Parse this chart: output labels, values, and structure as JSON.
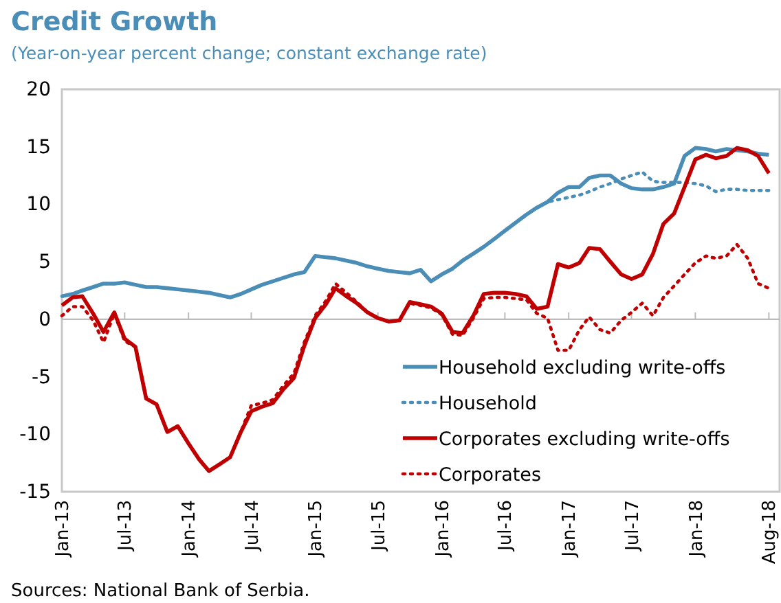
{
  "chart_data": {
    "type": "line",
    "title": "Credit Growth",
    "subtitle": "(Year-on-year percent change; constant exchange rate)",
    "x": [
      "2013-01",
      "2013-02",
      "2013-03",
      "2013-04",
      "2013-05",
      "2013-06",
      "2013-07",
      "2013-08",
      "2013-09",
      "2013-10",
      "2013-11",
      "2013-12",
      "2014-01",
      "2014-02",
      "2014-03",
      "2014-04",
      "2014-05",
      "2014-06",
      "2014-07",
      "2014-08",
      "2014-09",
      "2014-10",
      "2014-11",
      "2014-12",
      "2015-01",
      "2015-02",
      "2015-03",
      "2015-04",
      "2015-05",
      "2015-06",
      "2015-07",
      "2015-08",
      "2015-09",
      "2015-10",
      "2015-11",
      "2015-12",
      "2016-01",
      "2016-02",
      "2016-03",
      "2016-04",
      "2016-05",
      "2016-06",
      "2016-07",
      "2016-08",
      "2016-09",
      "2016-10",
      "2016-11",
      "2016-12",
      "2017-01",
      "2017-02",
      "2017-03",
      "2017-04",
      "2017-05",
      "2017-06",
      "2017-07",
      "2017-08",
      "2017-09",
      "2017-10",
      "2017-11",
      "2017-12",
      "2018-01",
      "2018-02",
      "2018-03",
      "2018-04",
      "2018-05",
      "2018-06",
      "2018-07",
      "2018-08"
    ],
    "series": [
      {
        "name": "Household excluding write-offs",
        "color": "#4a8db7",
        "line_style": "solid",
        "values": [
          2.0,
          2.2,
          2.5,
          2.8,
          3.1,
          3.1,
          3.2,
          3.0,
          2.8,
          2.8,
          2.7,
          2.6,
          2.5,
          2.4,
          2.3,
          2.1,
          1.9,
          2.2,
          2.6,
          3.0,
          3.3,
          3.6,
          3.9,
          4.1,
          5.5,
          5.4,
          5.3,
          5.1,
          4.9,
          4.6,
          4.4,
          4.2,
          4.1,
          4.0,
          4.3,
          3.3,
          3.9,
          4.4,
          5.1,
          5.7,
          6.3,
          7.0,
          7.7,
          8.4,
          9.1,
          9.7,
          10.2,
          11.0,
          11.5,
          11.5,
          12.3,
          12.5,
          12.5,
          11.8,
          11.4,
          11.3,
          11.3,
          11.5,
          11.8,
          14.2,
          14.9,
          14.8,
          14.6,
          14.8,
          14.7,
          14.6,
          14.4,
          14.3
        ]
      },
      {
        "name": "Household",
        "color": "#4a8db7",
        "line_style": "dotted",
        "values": [
          2.0,
          2.2,
          2.5,
          2.8,
          3.1,
          3.1,
          3.2,
          3.0,
          2.8,
          2.8,
          2.7,
          2.6,
          2.5,
          2.4,
          2.3,
          2.1,
          1.9,
          2.2,
          2.6,
          3.0,
          3.3,
          3.6,
          3.9,
          4.1,
          5.5,
          5.4,
          5.3,
          5.1,
          4.9,
          4.6,
          4.4,
          4.2,
          4.1,
          4.0,
          4.3,
          3.3,
          3.9,
          4.4,
          5.1,
          5.7,
          6.3,
          7.0,
          7.7,
          8.4,
          9.1,
          9.7,
          10.2,
          10.4,
          10.6,
          10.8,
          11.1,
          11.5,
          11.8,
          12.2,
          12.5,
          12.8,
          12.0,
          11.9,
          11.9,
          11.9,
          11.8,
          11.6,
          11.1,
          11.3,
          11.3,
          11.2,
          11.2,
          11.2
        ]
      },
      {
        "name": "Corporates excluding write-offs",
        "color": "#c00000",
        "line_style": "solid",
        "values": [
          1.2,
          1.9,
          2.0,
          0.5,
          -1.1,
          0.6,
          -1.7,
          -2.4,
          -6.9,
          -7.4,
          -9.8,
          -9.3,
          -10.8,
          -12.2,
          -13.2,
          -12.6,
          -12.0,
          -9.8,
          -8.0,
          -7.6,
          -7.3,
          -6.1,
          -5.1,
          -2.3,
          0.1,
          1.3,
          2.7,
          2.0,
          1.4,
          0.6,
          0.1,
          -0.2,
          -0.1,
          1.5,
          1.3,
          1.1,
          0.5,
          -1.1,
          -1.2,
          0.3,
          2.2,
          2.3,
          2.3,
          2.2,
          2.0,
          0.9,
          1.1,
          4.8,
          4.5,
          4.9,
          6.2,
          6.1,
          5.0,
          3.9,
          3.5,
          3.9,
          5.7,
          8.3,
          9.2,
          11.5,
          13.9,
          14.3,
          14.0,
          14.2,
          14.9,
          14.7,
          14.2,
          12.7
        ]
      },
      {
        "name": "Corporates",
        "color": "#c00000",
        "line_style": "dotted",
        "values": [
          0.3,
          1.1,
          1.1,
          -0.1,
          -2.0,
          0.5,
          -1.9,
          -2.4,
          -6.9,
          -7.4,
          -9.8,
          -9.3,
          -10.8,
          -12.2,
          -13.2,
          -12.6,
          -12.0,
          -9.8,
          -7.5,
          -7.3,
          -7.0,
          -5.8,
          -4.7,
          -2.0,
          0.3,
          1.6,
          3.1,
          2.3,
          1.5,
          0.6,
          0.1,
          -0.2,
          -0.1,
          1.4,
          1.2,
          1.0,
          0.4,
          -1.3,
          -1.4,
          0.1,
          1.8,
          1.9,
          1.9,
          1.8,
          1.7,
          0.5,
          0.1,
          -2.7,
          -2.7,
          -0.9,
          0.2,
          -0.9,
          -1.2,
          -0.1,
          0.6,
          1.4,
          0.3,
          1.9,
          2.9,
          3.9,
          4.9,
          5.5,
          5.3,
          5.5,
          6.5,
          5.3,
          3.1,
          2.7
        ]
      }
    ],
    "xlim": [
      "2013-01",
      "2018-09"
    ],
    "xticks": [
      {
        "value": "2013-01",
        "label": "Jan-13"
      },
      {
        "value": "2013-07",
        "label": "Jul-13"
      },
      {
        "value": "2014-01",
        "label": "Jan-14"
      },
      {
        "value": "2014-07",
        "label": "Jul-14"
      },
      {
        "value": "2015-01",
        "label": "Jan-15"
      },
      {
        "value": "2015-07",
        "label": "Jul-15"
      },
      {
        "value": "2016-01",
        "label": "Jan-16"
      },
      {
        "value": "2016-07",
        "label": "Jul-16"
      },
      {
        "value": "2017-01",
        "label": "Jan-17"
      },
      {
        "value": "2017-07",
        "label": "Jul-17"
      },
      {
        "value": "2018-01",
        "label": "Jan-18"
      },
      {
        "value": "2018-08",
        "label": "Aug-18"
      }
    ],
    "ylim": [
      -15,
      20
    ],
    "yticks": [
      -15,
      -10,
      -5,
      0,
      5,
      10,
      15,
      20
    ],
    "legend": "bottom right",
    "ref_lines": [
      {
        "axis": "y",
        "value": 0
      }
    ],
    "annotations": [
      "Sources: National Bank of Serbia."
    ]
  }
}
